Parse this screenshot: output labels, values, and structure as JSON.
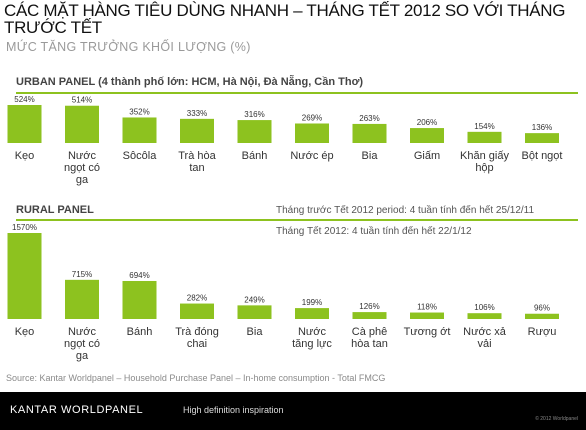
{
  "header": {
    "title": "CÁC MẶT HÀNG TIÊU DÙNG NHANH – THÁNG TẾT 2012 SO VỚI THÁNG TRƯỚC TẾT",
    "subtitle": "MỨC TĂNG TRƯỞNG KHỐI LƯỢNG (%)"
  },
  "notes": {
    "period_before": "Tháng trước Tết 2012 period: 4 tuần tính đến hết 25/12/11",
    "period_tet": "Tháng Tết 2012: 4 tuần tính đến hết 22/1/12"
  },
  "source": "Source: Kantar Worldpanel – Household Purchase Panel – In-home consumption - Total FMCG",
  "footer": {
    "brand": "KANTAR WORLDPANEL",
    "tagline": "High definition inspiration",
    "copyright": "© 2012 Worldpanel"
  },
  "colors": {
    "bar": "#8dc21f",
    "separator": "#8dc21f",
    "footer_bg": "#000000"
  },
  "chart_data": [
    {
      "type": "bar",
      "title": "URBAN PANEL (4 thành phố lớn: HCM, Hà Nội, Đà Nẵng, Cần Thơ)",
      "categories": [
        "Kẹo",
        "Nước ngọt có ga",
        "Sôcôla",
        "Trà hòa tan",
        "Bánh",
        "Nước ép",
        "Bia",
        "Giấm",
        "Khăn giấy hộp",
        "Bột ngọt"
      ],
      "values": [
        524,
        514,
        352,
        333,
        316,
        269,
        263,
        206,
        154,
        136
      ],
      "value_labels": [
        "524%",
        "514%",
        "352%",
        "333%",
        "316%",
        "269%",
        "263%",
        "206%",
        "154%",
        "136%"
      ],
      "ylim": [
        0,
        524
      ]
    },
    {
      "type": "bar",
      "title": "RURAL PANEL",
      "categories": [
        "Kẹo",
        "Nước ngọt có ga",
        "Bánh",
        "Trà đóng chai",
        "Bia",
        "Nước tăng lực",
        "Cà phê hòa tan",
        "Tương ớt",
        "Nước xả vải",
        "Rượu"
      ],
      "values": [
        1570,
        715,
        694,
        282,
        249,
        199,
        126,
        118,
        106,
        96
      ],
      "value_labels": [
        "1570%",
        "715%",
        "694%",
        "282%",
        "249%",
        "199%",
        "126%",
        "118%",
        "106%",
        "96%"
      ],
      "ylim": [
        0,
        1570
      ]
    }
  ]
}
